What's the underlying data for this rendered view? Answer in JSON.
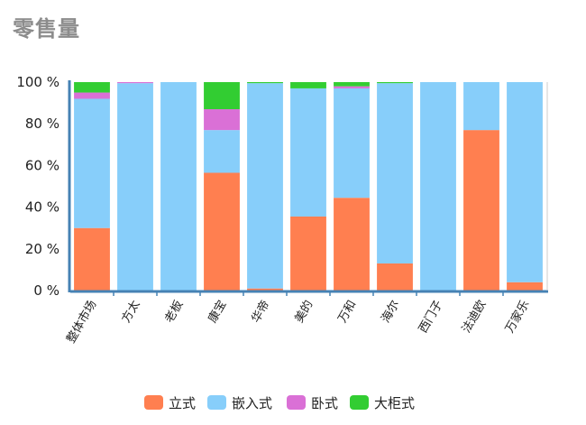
{
  "title": "零售量",
  "chart_data": {
    "type": "bar",
    "stacked": true,
    "percent": true,
    "categories": [
      "整体市场",
      "方太",
      "老板",
      "康宝",
      "华帝",
      "美的",
      "万和",
      "海尔",
      "西门子",
      "法迪欧",
      "万家乐"
    ],
    "series": [
      {
        "name": "立式",
        "color": "#ff7f50",
        "values": [
          30,
          0,
          0,
          56.5,
          1,
          35.5,
          44.5,
          13,
          0,
          77,
          4
        ]
      },
      {
        "name": "嵌入式",
        "color": "#87cefa",
        "values": [
          62,
          99.5,
          100,
          20.5,
          98.5,
          61.5,
          52.5,
          86.5,
          100,
          23,
          96
        ]
      },
      {
        "name": "卧式",
        "color": "#da70d6",
        "values": [
          3,
          0.5,
          0,
          10,
          0,
          0,
          1,
          0,
          0,
          0,
          0
        ]
      },
      {
        "name": "大柜式",
        "color": "#32cd32",
        "values": [
          5,
          0,
          0,
          13,
          0.5,
          3,
          2,
          0.5,
          0,
          0,
          0
        ]
      }
    ],
    "y_ticks": [
      "0 %",
      "20 %",
      "40 %",
      "60 %",
      "80 %",
      "100 %"
    ],
    "ylim": [
      0,
      100
    ],
    "legend_position": "bottom-center",
    "grid": false
  }
}
